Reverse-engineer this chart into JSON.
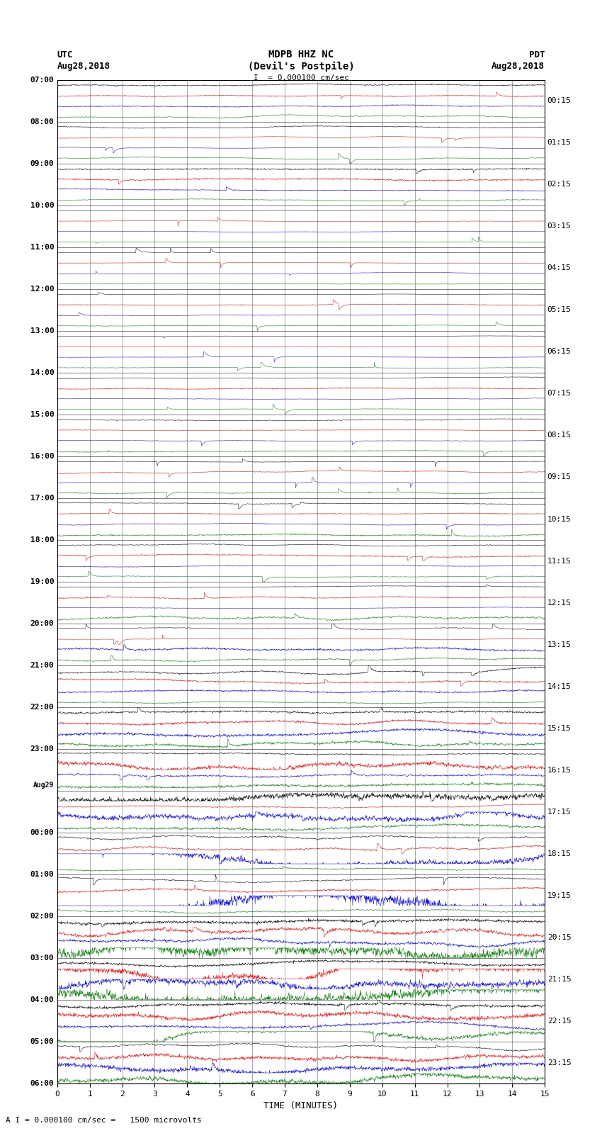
{
  "title_line1": "MDPB HHZ NC",
  "title_line2": "(Devil's Postpile)",
  "scale_label": "I  = 0.000100 cm/sec",
  "footer_label": "A I = 0.000100 cm/sec =   1500 microvolts",
  "utc_label1": "UTC",
  "utc_label2": "Aug28,2018",
  "pdt_label1": "PDT",
  "pdt_label2": "Aug28,2018",
  "xlabel": "TIME (MINUTES)",
  "left_times_utc": [
    "07:00",
    "08:00",
    "09:00",
    "10:00",
    "11:00",
    "12:00",
    "13:00",
    "14:00",
    "15:00",
    "16:00",
    "17:00",
    "18:00",
    "19:00",
    "20:00",
    "21:00",
    "22:00",
    "23:00",
    "Aug29",
    "00:00",
    "01:00",
    "02:00",
    "03:00",
    "04:00",
    "05:00",
    "06:00"
  ],
  "left_times_special": [
    17
  ],
  "right_times_pdt": [
    "00:15",
    "01:15",
    "02:15",
    "03:15",
    "04:15",
    "05:15",
    "06:15",
    "07:15",
    "08:15",
    "09:15",
    "10:15",
    "11:15",
    "12:15",
    "13:15",
    "14:15",
    "15:15",
    "16:15",
    "17:15",
    "18:15",
    "19:15",
    "20:15",
    "21:15",
    "22:15",
    "23:15"
  ],
  "n_rows": 96,
  "n_cols": 4,
  "trace_colors": [
    "black",
    "red",
    "blue",
    "green"
  ],
  "bg_color": "white",
  "fig_width": 8.5,
  "fig_height": 16.13,
  "dpi": 100,
  "xmin": 0,
  "xmax": 15,
  "xticks": [
    0,
    1,
    2,
    3,
    4,
    5,
    6,
    7,
    8,
    9,
    10,
    11,
    12,
    13,
    14,
    15
  ]
}
